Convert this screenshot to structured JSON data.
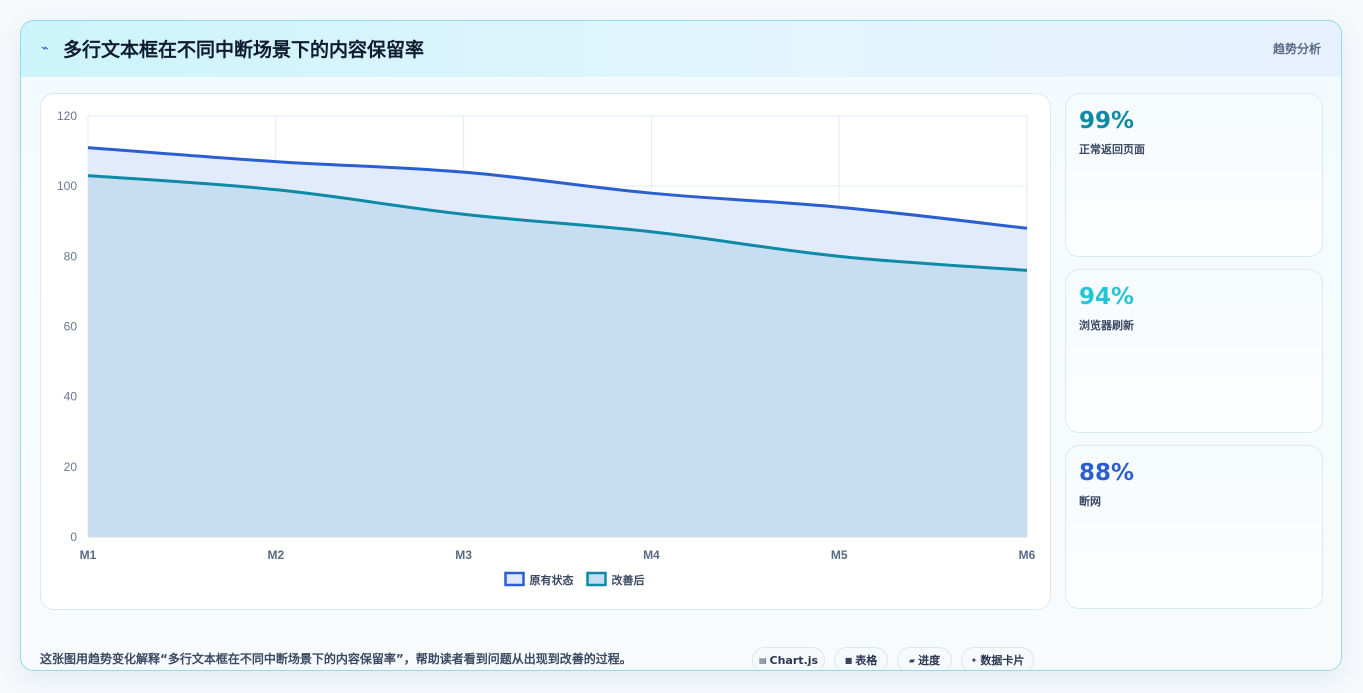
{
  "header": {
    "icon": "trend-line-icon",
    "title": "多行文本框在不同中断场景下的内容保留率",
    "tag": "趋势分析"
  },
  "chart_data": {
    "type": "area",
    "categories": [
      "M1",
      "M2",
      "M3",
      "M4",
      "M5",
      "M6"
    ],
    "yticks": [
      "0",
      "20",
      "40",
      "60",
      "80",
      "100",
      "120"
    ],
    "ylim": [
      0,
      120
    ],
    "grid": true,
    "legend_position": "bottom",
    "series": [
      {
        "name": "原有状态",
        "values": [
          111,
          107,
          104,
          98,
          94,
          88
        ],
        "color": "#2b5fcf",
        "fill": "#dfe9fb"
      },
      {
        "name": "改善后",
        "values": [
          103,
          99,
          92,
          87,
          80,
          76
        ],
        "color": "#0e8aa6",
        "fill": "#c4ddf1"
      }
    ]
  },
  "stats": [
    {
      "value": "99%",
      "label": "正常返回页面",
      "color": "#0e8aa6"
    },
    {
      "value": "94%",
      "label": "浏览器刷新",
      "color": "#22c6d6"
    },
    {
      "value": "88%",
      "label": "断网",
      "color": "#2b5fcf"
    }
  ],
  "footer": {
    "description": "这张图用趋势变化解释“多行文本框在不同中断场景下的内容保留率”，帮助读者看到问题从出现到改善的过程。",
    "chips": [
      {
        "icon": "▤",
        "label": "Chart.js"
      },
      {
        "icon": "■",
        "label": "表格"
      },
      {
        "icon": "▰",
        "label": "进度"
      },
      {
        "icon": "✦",
        "label": "数据卡片"
      }
    ]
  }
}
